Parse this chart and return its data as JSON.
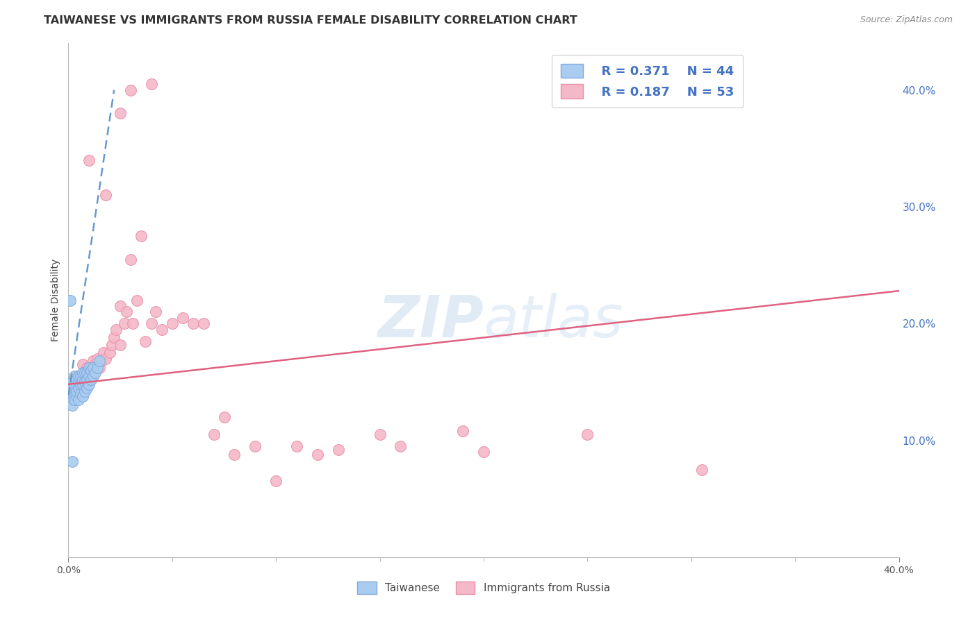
{
  "title": "TAIWANESE VS IMMIGRANTS FROM RUSSIA FEMALE DISABILITY CORRELATION CHART",
  "source": "Source: ZipAtlas.com",
  "ylabel": "Female Disability",
  "xmin": 0.0,
  "xmax": 0.4,
  "ymin": 0.0,
  "ymax": 0.44,
  "x_ticks": [
    0.0,
    0.4
  ],
  "x_ticks_minor": [
    0.05,
    0.1,
    0.15,
    0.2,
    0.25,
    0.3,
    0.35
  ],
  "y_ticks_right": [
    0.1,
    0.2,
    0.3,
    0.4
  ],
  "background_color": "#ffffff",
  "grid_color": "#dddddd",
  "taiwanese_color": "#aaccf0",
  "russia_color": "#f5b8c8",
  "taiwanese_edge": "#80aadd",
  "russia_edge": "#e890a8",
  "blue_line_color": "#6699cc",
  "pink_line_color": "#e06080",
  "legend_r1": "R = 0.371",
  "legend_n1": "N = 44",
  "legend_r2": "R = 0.187",
  "legend_n2": "N = 53",
  "label_taiwanese": "Taiwanese",
  "label_russia": "Immigrants from Russia",
  "watermark_zip": "ZIP",
  "watermark_atlas": "atlas",
  "taiwanese_x": [
    0.001,
    0.001,
    0.001,
    0.002,
    0.002,
    0.002,
    0.002,
    0.003,
    0.003,
    0.003,
    0.003,
    0.004,
    0.004,
    0.004,
    0.004,
    0.005,
    0.005,
    0.005,
    0.005,
    0.006,
    0.006,
    0.006,
    0.007,
    0.007,
    0.007,
    0.007,
    0.008,
    0.008,
    0.008,
    0.009,
    0.009,
    0.009,
    0.01,
    0.01,
    0.01,
    0.011,
    0.011,
    0.012,
    0.012,
    0.013,
    0.014,
    0.015,
    0.001,
    0.002
  ],
  "taiwanese_y": [
    0.135,
    0.14,
    0.145,
    0.13,
    0.14,
    0.15,
    0.145,
    0.135,
    0.145,
    0.155,
    0.148,
    0.138,
    0.148,
    0.142,
    0.152,
    0.135,
    0.145,
    0.15,
    0.155,
    0.14,
    0.148,
    0.155,
    0.138,
    0.148,
    0.152,
    0.158,
    0.142,
    0.15,
    0.158,
    0.145,
    0.152,
    0.158,
    0.148,
    0.155,
    0.162,
    0.152,
    0.16,
    0.155,
    0.162,
    0.158,
    0.162,
    0.168,
    0.22,
    0.082
  ],
  "russia_x": [
    0.004,
    0.006,
    0.007,
    0.008,
    0.009,
    0.01,
    0.011,
    0.012,
    0.013,
    0.014,
    0.015,
    0.016,
    0.017,
    0.018,
    0.02,
    0.021,
    0.022,
    0.023,
    0.025,
    0.025,
    0.027,
    0.028,
    0.03,
    0.031,
    0.033,
    0.035,
    0.037,
    0.04,
    0.042,
    0.045,
    0.05,
    0.055,
    0.06,
    0.065,
    0.07,
    0.075,
    0.08,
    0.09,
    0.1,
    0.11,
    0.12,
    0.13,
    0.15,
    0.16,
    0.19,
    0.2,
    0.25,
    0.305,
    0.01,
    0.018,
    0.025,
    0.03,
    0.04
  ],
  "russia_y": [
    0.155,
    0.155,
    0.165,
    0.158,
    0.162,
    0.155,
    0.162,
    0.168,
    0.165,
    0.17,
    0.162,
    0.168,
    0.175,
    0.17,
    0.175,
    0.182,
    0.188,
    0.195,
    0.215,
    0.182,
    0.2,
    0.21,
    0.255,
    0.2,
    0.22,
    0.275,
    0.185,
    0.2,
    0.21,
    0.195,
    0.2,
    0.205,
    0.2,
    0.2,
    0.105,
    0.12,
    0.088,
    0.095,
    0.065,
    0.095,
    0.088,
    0.092,
    0.105,
    0.095,
    0.108,
    0.09,
    0.105,
    0.075,
    0.34,
    0.31,
    0.38,
    0.4,
    0.405
  ],
  "tw_line_x": [
    0.0,
    0.022
  ],
  "tw_line_y": [
    0.138,
    0.4
  ],
  "ru_line_x": [
    0.0,
    0.4
  ],
  "ru_line_y": [
    0.148,
    0.228
  ]
}
